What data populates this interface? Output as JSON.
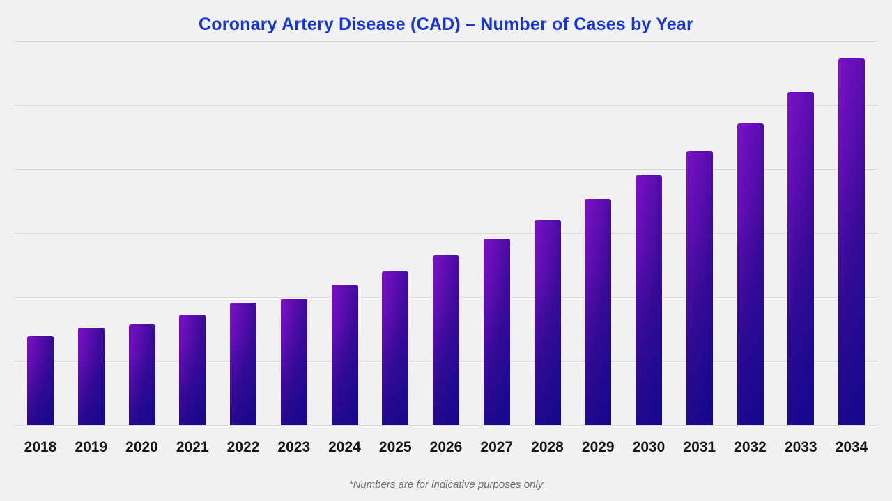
{
  "theme": {
    "background": "#f1f1f2",
    "title_color": "#1535d6",
    "x_label_color": "#161616",
    "footnote_color": "#707070",
    "gridline_color": "#dcdcdf",
    "bar_gradient": [
      "#7c11c6",
      "#3c0b9a",
      "#1c0aa0"
    ]
  },
  "header": {
    "title": "Coronary Artery Disease (CAD) – Number of Cases by Year"
  },
  "footnote": {
    "text": "*Numbers are for indicative purposes only"
  },
  "chart_data": {
    "type": "bar",
    "title": "Coronary Artery Disease (CAD) – Number of Cases by Year",
    "categories": [
      "2018",
      "2019",
      "2020",
      "2021",
      "2022",
      "2023",
      "2024",
      "2025",
      "2026",
      "2027",
      "2028",
      "2029",
      "2030",
      "2031",
      "2032",
      "2033",
      "2034"
    ],
    "values": [
      128,
      140,
      145,
      159,
      176,
      182,
      202,
      221,
      244,
      268,
      295,
      325,
      359,
      394,
      434,
      479,
      527
    ],
    "values_unit": "relative bar heights as rendered in pixels; the chart displays no numeric y-axis scale",
    "values_in_gridline_units": [
      1.39,
      1.52,
      1.58,
      1.73,
      1.91,
      1.98,
      2.2,
      2.4,
      2.65,
      2.91,
      3.21,
      3.53,
      3.9,
      4.28,
      4.72,
      5.21,
      5.73
    ],
    "xlabel": "",
    "ylabel": "",
    "y_axis_ticks": [],
    "grid": {
      "visible": true,
      "horizontal_lines": 7
    },
    "legend": {
      "visible": false
    },
    "annotations": [
      "*Numbers are for indicative purposes only"
    ]
  }
}
